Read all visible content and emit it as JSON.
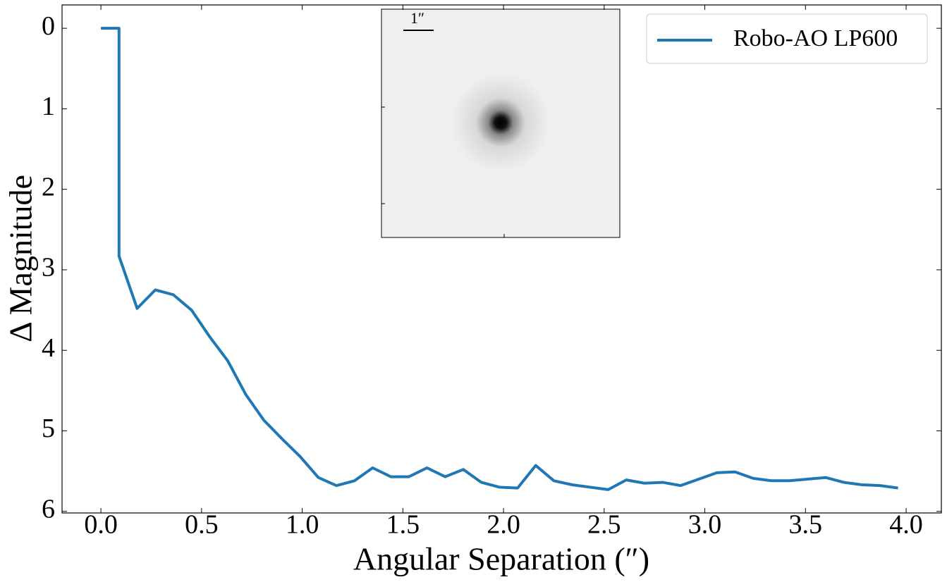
{
  "chart_data": {
    "type": "line",
    "xlabel": "Angular Separation (″)",
    "ylabel": "Δ Magnitude",
    "inset_label": "1″",
    "x": [
      0,
      0.09,
      0.09,
      0.18,
      0.27,
      0.36,
      0.45,
      0.54,
      0.63,
      0.72,
      0.81,
      0.9,
      0.99,
      1.08,
      1.17,
      1.26,
      1.35,
      1.44,
      1.53,
      1.62,
      1.71,
      1.8,
      1.89,
      1.98,
      2.07,
      2.16,
      2.25,
      2.34,
      2.43,
      2.52,
      2.61,
      2.7,
      2.79,
      2.88,
      2.97,
      3.06,
      3.15,
      3.24,
      3.33,
      3.42,
      3.51,
      3.6,
      3.69,
      3.78,
      3.87,
      3.96
    ],
    "series": [
      {
        "name": "Robo-AO LP600",
        "color": "#1f77b4",
        "values": [
          0,
          0,
          2.83,
          3.48,
          3.25,
          3.31,
          3.5,
          3.83,
          4.13,
          4.55,
          4.87,
          5.1,
          5.32,
          5.58,
          5.68,
          5.62,
          5.46,
          5.57,
          5.57,
          5.46,
          5.57,
          5.48,
          5.64,
          5.7,
          5.71,
          5.43,
          5.62,
          5.67,
          5.7,
          5.73,
          5.61,
          5.65,
          5.64,
          5.68,
          5.6,
          5.52,
          5.51,
          5.59,
          5.62,
          5.62,
          5.6,
          5.58,
          5.64,
          5.67,
          5.68,
          5.71
        ]
      }
    ],
    "xlim": [
      -0.193,
      4.175
    ],
    "xticks": [
      {
        "value": 0,
        "label": "0.0"
      },
      0.5,
      {
        "value": 1,
        "label": "1.0"
      },
      1.5,
      {
        "value": 2,
        "label": "2.0"
      },
      2.5,
      {
        "value": 3,
        "label": "3.0"
      },
      3.5,
      {
        "value": 4,
        "label": "4.0"
      }
    ],
    "ylim": [
      -0.29,
      6.02
    ],
    "y_inverted": true,
    "yticks": [
      0,
      1,
      2,
      3,
      4,
      5,
      6
    ],
    "grid": false,
    "legend": "upper right"
  }
}
